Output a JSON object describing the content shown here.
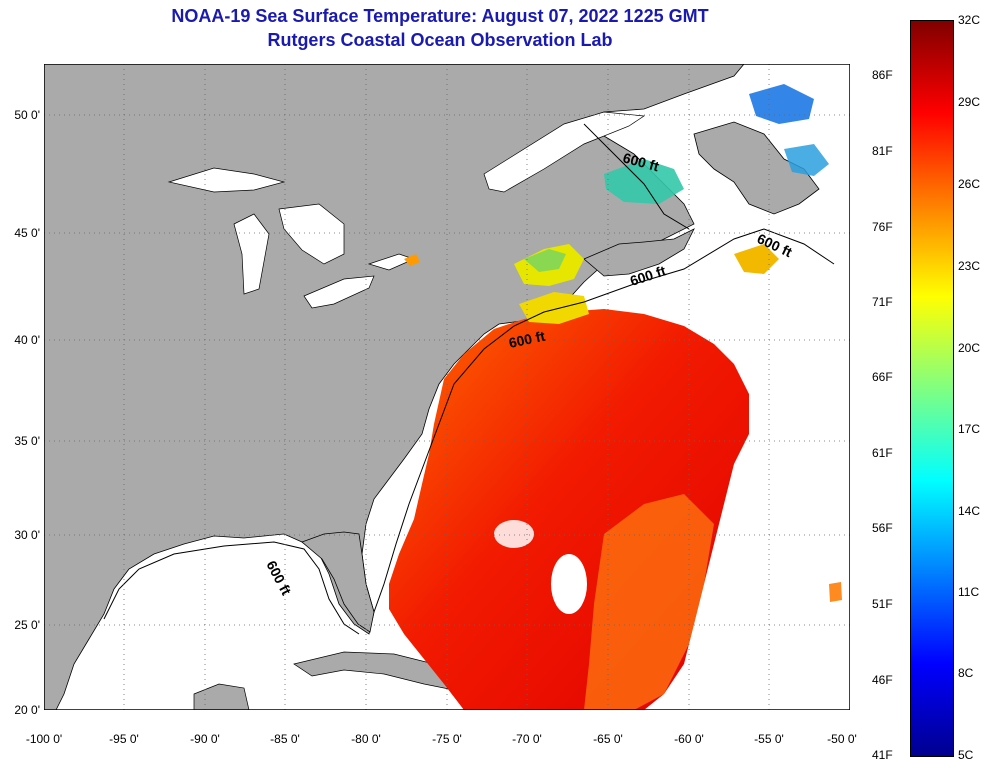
{
  "title": {
    "line1": "NOAA-19 Sea Surface Temperature:  August 07, 2022 1225 GMT",
    "line2": "Rutgers Coastal Ocean Observation Lab"
  },
  "map": {
    "lat_labels": [
      "50 0'",
      "45 0'",
      "40 0'",
      "35 0'",
      "30 0'",
      "25 0'",
      "20 0'"
    ],
    "lon_labels": [
      "-100 0'",
      "-95 0'",
      "-90 0'",
      "-85 0'",
      "-80 0'",
      "-75 0'",
      "-70 0'",
      "-65 0'",
      "-60 0'",
      "-55 0'",
      "-50 0'"
    ],
    "contour_labels": [
      "600 ft",
      "600 ft",
      "600 ft",
      "600 ft",
      "600 ft"
    ],
    "land_color": "#aaaaaa",
    "nodata_color": "#ffffff"
  },
  "colorbar": {
    "celsius_labels": [
      "32C",
      "29C",
      "26C",
      "23C",
      "20C",
      "17C",
      "14C",
      "11C",
      "8C",
      "5C"
    ],
    "fahrenheit_labels": [
      "86F",
      "81F",
      "76F",
      "71F",
      "66F",
      "61F",
      "56F",
      "51F",
      "46F",
      "41F"
    ],
    "colors": [
      "#00008f",
      "#0000ff",
      "#0080ff",
      "#00ffff",
      "#80ff80",
      "#ffff00",
      "#ff8000",
      "#ff0000",
      "#800000"
    ]
  }
}
